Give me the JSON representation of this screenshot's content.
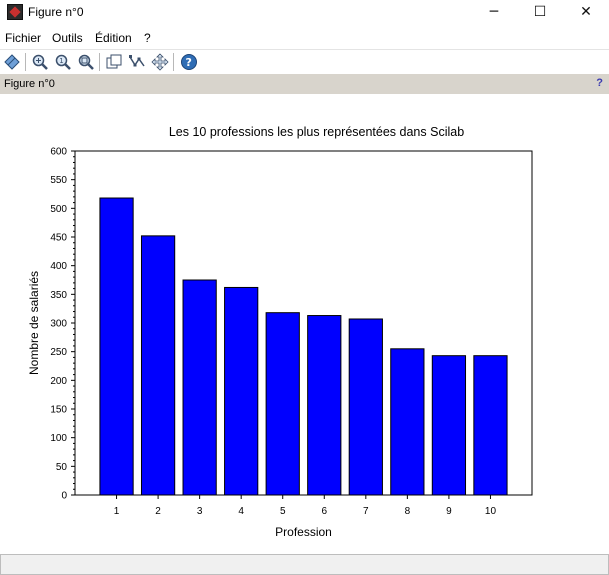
{
  "window": {
    "title": "Figure n°0",
    "minimize_glyph": "─",
    "maximize_glyph": "☐",
    "close_glyph": "✕"
  },
  "menu": [
    {
      "label": "Fichier"
    },
    {
      "label": "Outils"
    },
    {
      "label": "Édition"
    },
    {
      "label": "?"
    }
  ],
  "toolbar": {
    "icons": [
      "figure-icon",
      "zoom-icon",
      "zoom-original-icon",
      "zoom-box-icon",
      "rotate-icon",
      "datatip-icon",
      "pan-icon",
      "help-icon"
    ]
  },
  "figure_header": {
    "name": "Figure n°0",
    "help": "?"
  },
  "status": {
    "text": ""
  },
  "colors": {
    "bar_fill": "#0000ff",
    "bar_stroke": "#000000"
  },
  "chart_data": {
    "type": "bar",
    "title": "Les 10 professions les plus représentées dans Scilab",
    "xlabel": "Profession",
    "ylabel": "Nombre de salariés",
    "categories": [
      "1",
      "2",
      "3",
      "4",
      "5",
      "6",
      "7",
      "8",
      "9",
      "10"
    ],
    "values": [
      518,
      452,
      375,
      362,
      318,
      313,
      307,
      255,
      243,
      243
    ],
    "ylim": [
      0,
      600
    ],
    "yticks": [
      "0",
      "50",
      "100",
      "150",
      "200",
      "250",
      "300",
      "350",
      "400",
      "450",
      "500",
      "550",
      "600"
    ],
    "grid": false
  }
}
